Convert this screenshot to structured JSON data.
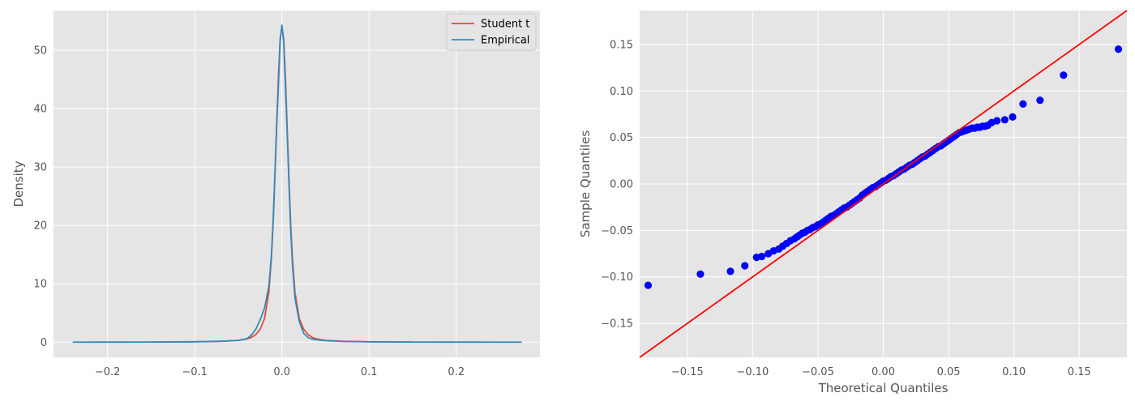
{
  "colors": {
    "background": "#ffffff",
    "axes_face": "#e5e5e5",
    "grid": "#ffffff",
    "student_t": "#e24a33",
    "empirical": "#348abd",
    "qq_points": "#0000ff",
    "qq_line": "#ff0000"
  },
  "chart_data": [
    {
      "type": "line",
      "title": "",
      "xlabel": "",
      "ylabel": "Density",
      "xlim": [
        -0.262,
        0.296
      ],
      "ylim": [
        -2.6,
        56.8
      ],
      "xticks": [
        -0.2,
        -0.1,
        0.0,
        0.1,
        0.2
      ],
      "xtick_labels": [
        "−0.2",
        "−0.1",
        "0.0",
        "0.1",
        "0.2"
      ],
      "yticks": [
        0,
        10,
        20,
        30,
        40,
        50
      ],
      "ytick_labels": [
        "0",
        "10",
        "20",
        "30",
        "40",
        "50"
      ],
      "grid": true,
      "legend_position": "top-right",
      "series": [
        {
          "name": "Student t",
          "color": "#e24a33",
          "x": [
            -0.15,
            -0.1,
            -0.07,
            -0.05,
            -0.04,
            -0.035,
            -0.03,
            -0.025,
            -0.02,
            -0.015,
            -0.012,
            -0.01,
            -0.008,
            -0.006,
            -0.004,
            -0.002,
            0.0,
            0.002,
            0.004,
            0.006,
            0.008,
            0.01,
            0.012,
            0.015,
            0.02,
            0.025,
            0.03,
            0.035,
            0.04,
            0.05,
            0.07,
            0.1,
            0.15
          ],
          "y": [
            0.02,
            0.06,
            0.15,
            0.3,
            0.55,
            0.8,
            1.3,
            2.2,
            4.0,
            8.5,
            14.5,
            20.5,
            28.5,
            37.0,
            45.5,
            52.0,
            54.0,
            52.0,
            45.5,
            37.0,
            28.5,
            20.5,
            14.5,
            8.5,
            4.0,
            2.2,
            1.3,
            0.8,
            0.55,
            0.3,
            0.15,
            0.06,
            0.02
          ]
        },
        {
          "name": "Empirical",
          "color": "#348abd",
          "x": [
            -0.24,
            -0.15,
            -0.1,
            -0.07,
            -0.05,
            -0.04,
            -0.035,
            -0.03,
            -0.025,
            -0.02,
            -0.015,
            -0.012,
            -0.01,
            -0.008,
            -0.006,
            -0.004,
            -0.002,
            0.0,
            0.002,
            0.004,
            0.006,
            0.008,
            0.01,
            0.012,
            0.015,
            0.02,
            0.025,
            0.03,
            0.035,
            0.04,
            0.05,
            0.07,
            0.1,
            0.15,
            0.2,
            0.275
          ],
          "y": [
            0.0,
            0.02,
            0.06,
            0.15,
            0.3,
            0.6,
            1.2,
            2.2,
            3.8,
            5.8,
            9.5,
            15.0,
            21.0,
            29.0,
            37.0,
            44.0,
            51.5,
            54.3,
            51.5,
            44.0,
            36.0,
            27.5,
            19.5,
            13.5,
            7.5,
            3.5,
            1.5,
            0.8,
            0.5,
            0.4,
            0.25,
            0.12,
            0.05,
            0.02,
            0.01,
            0.0
          ]
        }
      ]
    },
    {
      "type": "scatter",
      "title": "",
      "xlabel": "Theoretical Quantiles",
      "ylabel": "Sample Quantiles",
      "xlim": [
        -0.1865,
        0.1865
      ],
      "ylim": [
        -0.1865,
        0.1865
      ],
      "xticks": [
        -0.15,
        -0.1,
        -0.05,
        0.0,
        0.05,
        0.1,
        0.15
      ],
      "xtick_labels": [
        "−0.15",
        "−0.10",
        "−0.05",
        "0.00",
        "0.05",
        "0.10",
        "0.15"
      ],
      "yticks": [
        -0.15,
        -0.1,
        -0.05,
        0.0,
        0.05,
        0.1,
        0.15
      ],
      "ytick_labels": [
        "−0.15",
        "−0.10",
        "−0.05",
        "0.00",
        "0.05",
        "0.10",
        "0.15"
      ],
      "grid": true,
      "reference_line": {
        "x": [
          -0.1865,
          0.1865
        ],
        "y": [
          -0.1865,
          0.1865
        ],
        "color": "#ff0000"
      },
      "points": {
        "color": "#0000ff",
        "x": [
          -0.18,
          -0.14,
          -0.117,
          -0.106,
          -0.097,
          -0.093,
          -0.088,
          -0.084,
          -0.08,
          -0.077,
          -0.074,
          -0.071,
          -0.068,
          -0.066,
          -0.064,
          -0.062,
          -0.06,
          -0.058,
          -0.056,
          -0.054,
          -0.052,
          -0.05,
          -0.048,
          -0.046,
          -0.044,
          -0.042,
          -0.04,
          -0.038,
          -0.036,
          -0.034,
          -0.032,
          -0.03,
          -0.028,
          -0.026,
          -0.024,
          -0.022,
          -0.02,
          -0.018,
          -0.016,
          -0.014,
          -0.012,
          -0.01,
          -0.008,
          -0.006,
          -0.004,
          -0.002,
          0.0,
          0.002,
          0.004,
          0.006,
          0.008,
          0.01,
          0.012,
          0.014,
          0.016,
          0.018,
          0.02,
          0.022,
          0.024,
          0.026,
          0.028,
          0.03,
          0.032,
          0.034,
          0.036,
          0.038,
          0.04,
          0.042,
          0.044,
          0.046,
          0.048,
          0.05,
          0.052,
          0.054,
          0.056,
          0.058,
          0.06,
          0.062,
          0.064,
          0.066,
          0.068,
          0.07,
          0.072,
          0.074,
          0.076,
          0.078,
          0.08,
          0.083,
          0.087,
          0.093,
          0.099,
          0.107,
          0.12,
          0.138,
          0.18
        ],
        "y": [
          -0.109,
          -0.097,
          -0.094,
          -0.088,
          -0.079,
          -0.078,
          -0.075,
          -0.072,
          -0.07,
          -0.067,
          -0.064,
          -0.061,
          -0.059,
          -0.057,
          -0.055,
          -0.053,
          -0.052,
          -0.05,
          -0.049,
          -0.047,
          -0.046,
          -0.044,
          -0.043,
          -0.041,
          -0.039,
          -0.037,
          -0.035,
          -0.034,
          -0.032,
          -0.03,
          -0.028,
          -0.026,
          -0.025,
          -0.023,
          -0.021,
          -0.019,
          -0.017,
          -0.015,
          -0.012,
          -0.01,
          -0.008,
          -0.006,
          -0.004,
          -0.003,
          -0.001,
          0.001,
          0.003,
          0.004,
          0.006,
          0.008,
          0.009,
          0.011,
          0.013,
          0.015,
          0.016,
          0.018,
          0.02,
          0.021,
          0.023,
          0.025,
          0.027,
          0.029,
          0.03,
          0.032,
          0.034,
          0.036,
          0.038,
          0.04,
          0.041,
          0.043,
          0.045,
          0.047,
          0.049,
          0.051,
          0.053,
          0.055,
          0.056,
          0.057,
          0.058,
          0.059,
          0.06,
          0.06,
          0.061,
          0.061,
          0.062,
          0.062,
          0.063,
          0.066,
          0.068,
          0.069,
          0.072,
          0.086,
          0.09,
          0.117,
          0.145
        ]
      }
    }
  ]
}
